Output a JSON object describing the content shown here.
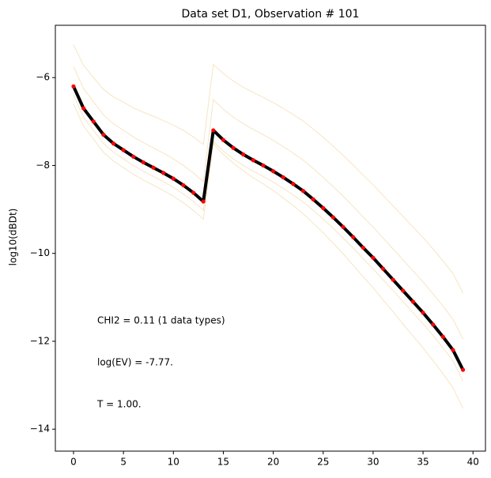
{
  "chart_data": {
    "type": "line",
    "title": "Data set D1, Observation # 101",
    "ylabel": "log10(dBDt)",
    "annotations": [
      "CHI2 = 0.11 (1 data types)",
      "log(EV) = -7.77.",
      "T = 1.00."
    ],
    "x": [
      0,
      1,
      2,
      3,
      4,
      5,
      6,
      7,
      8,
      9,
      10,
      11,
      12,
      13,
      14,
      15,
      16,
      17,
      18,
      19,
      20,
      21,
      22,
      23,
      24,
      25,
      26,
      27,
      28,
      29,
      30,
      31,
      32,
      33,
      34,
      35,
      36,
      37,
      38,
      39
    ],
    "xlim": [
      -1.82,
      41.25
    ],
    "ylim": [
      -14.5,
      -4.81
    ],
    "xticks": [
      0,
      5,
      10,
      15,
      20,
      25,
      30,
      35,
      40
    ],
    "yticks": [
      {
        "value": -14,
        "label": "−14"
      },
      {
        "value": -12,
        "label": "−12"
      },
      {
        "value": -10,
        "label": "−10"
      },
      {
        "value": -8,
        "label": "−8"
      },
      {
        "value": -6,
        "label": "−6"
      }
    ],
    "grid": false,
    "ensemble_color": "#f5deb3",
    "ensemble": [
      {
        "values": [
          -5.25,
          -5.72,
          -6.0,
          -6.27,
          -6.44,
          -6.56,
          -6.69,
          -6.79,
          -6.88,
          -6.98,
          -7.08,
          -7.2,
          -7.35,
          -7.52,
          -5.7,
          -5.91,
          -6.08,
          -6.22,
          -6.34,
          -6.45,
          -6.57,
          -6.7,
          -6.84,
          -6.99,
          -7.17,
          -7.36,
          -7.56,
          -7.77,
          -7.99,
          -8.22,
          -8.44,
          -8.68,
          -8.92,
          -9.16,
          -9.4,
          -9.64,
          -9.9,
          -10.17,
          -10.46,
          -10.9
        ]
      },
      {
        "values": [
          -5.75,
          -6.25,
          -6.55,
          -6.85,
          -7.05,
          -7.2,
          -7.35,
          -7.48,
          -7.6,
          -7.72,
          -7.85,
          -8.0,
          -8.17,
          -8.37,
          -6.5,
          -6.72,
          -6.9,
          -7.05,
          -7.18,
          -7.3,
          -7.43,
          -7.57,
          -7.72,
          -7.88,
          -8.07,
          -8.27,
          -8.48,
          -8.7,
          -8.93,
          -9.17,
          -9.4,
          -9.65,
          -9.9,
          -10.15,
          -10.4,
          -10.65,
          -10.92,
          -11.2,
          -11.5,
          -11.95
        ]
      },
      {
        "values": [
          -6.4,
          -6.9,
          -7.2,
          -7.5,
          -7.7,
          -7.85,
          -8.0,
          -8.13,
          -8.25,
          -8.37,
          -8.5,
          -8.65,
          -8.82,
          -9.02,
          -7.45,
          -7.67,
          -7.85,
          -8.0,
          -8.13,
          -8.25,
          -8.38,
          -8.52,
          -8.67,
          -8.83,
          -9.02,
          -9.22,
          -9.43,
          -9.65,
          -9.88,
          -10.12,
          -10.35,
          -10.6,
          -10.85,
          -11.1,
          -11.35,
          -11.6,
          -11.87,
          -12.15,
          -12.45,
          -12.9
        ]
      },
      {
        "values": [
          -6.6,
          -7.1,
          -7.4,
          -7.7,
          -7.9,
          -8.05,
          -8.2,
          -8.33,
          -8.45,
          -8.57,
          -8.7,
          -8.85,
          -9.02,
          -9.22,
          -7.5,
          -7.75,
          -7.95,
          -8.12,
          -8.28,
          -8.42,
          -8.57,
          -8.74,
          -8.91,
          -9.1,
          -9.31,
          -9.53,
          -9.77,
          -10.01,
          -10.27,
          -10.53,
          -10.78,
          -11.06,
          -11.33,
          -11.61,
          -11.88,
          -12.15,
          -12.44,
          -12.74,
          -13.06,
          -13.53
        ]
      }
    ],
    "series": [
      {
        "color": "#000000",
        "marker_color": "#ff0000",
        "values": [
          -6.2,
          -6.7,
          -7.0,
          -7.3,
          -7.5,
          -7.65,
          -7.8,
          -7.93,
          -8.05,
          -8.17,
          -8.3,
          -8.45,
          -8.62,
          -8.82,
          -7.2,
          -7.42,
          -7.6,
          -7.75,
          -7.88,
          -8.0,
          -8.13,
          -8.27,
          -8.42,
          -8.58,
          -8.77,
          -8.97,
          -9.18,
          -9.4,
          -9.63,
          -9.87,
          -10.1,
          -10.35,
          -10.6,
          -10.85,
          -11.1,
          -11.35,
          -11.62,
          -11.9,
          -12.2,
          -12.65
        ]
      }
    ]
  }
}
